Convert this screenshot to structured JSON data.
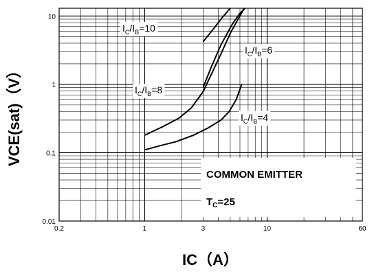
{
  "chart_data": {
    "type": "line",
    "xlabel": "IC（A）",
    "ylabel": "VCE(sat)（V）",
    "x_scale": "log",
    "y_scale": "log",
    "xlim": [
      0.2,
      60
    ],
    "ylim": [
      0.01,
      13
    ],
    "grid": true,
    "x_ticks": [
      {
        "value": 0.2,
        "label": "0.2"
      },
      {
        "value": 1,
        "label": "1"
      },
      {
        "value": 3,
        "label": "3"
      },
      {
        "value": 10,
        "label": "10"
      },
      {
        "value": 60,
        "label": "60"
      }
    ],
    "y_ticks": [
      {
        "value": 0.01,
        "label": "0.01"
      },
      {
        "value": 0.1,
        "label": "0.1"
      },
      {
        "value": 1,
        "label": "1"
      },
      {
        "value": 10,
        "label": "10"
      }
    ],
    "series": [
      {
        "curve_label": {
          "main": "I",
          "sub1": "C",
          "mid": "/I",
          "sub2": "B",
          "tail": "=10"
        },
        "points": [
          [
            3.0,
            4.2
          ],
          [
            3.6,
            6.3
          ],
          [
            4.3,
            9.5
          ],
          [
            5.0,
            13.0
          ]
        ]
      },
      {
        "curve_label": {
          "main": "I",
          "sub1": "C",
          "mid": "/I",
          "sub2": "B",
          "tail": "=6"
        },
        "points": [
          [
            3.0,
            0.9
          ],
          [
            3.5,
            1.8
          ],
          [
            4.2,
            3.8
          ],
          [
            5.2,
            7.6
          ],
          [
            6.0,
            11.0
          ],
          [
            6.6,
            13.0
          ]
        ]
      },
      {
        "curve_label": {
          "main": "I",
          "sub1": "C",
          "mid": "/I",
          "sub2": "B",
          "tail": "=8"
        },
        "points": [
          [
            1.0,
            0.18
          ],
          [
            1.4,
            0.24
          ],
          [
            1.9,
            0.32
          ],
          [
            2.4,
            0.45
          ],
          [
            3.0,
            0.78
          ],
          [
            3.5,
            1.4
          ],
          [
            4.2,
            2.8
          ],
          [
            5.0,
            5.6
          ],
          [
            5.8,
            9.0
          ],
          [
            6.5,
            13.0
          ]
        ]
      },
      {
        "curve_label": {
          "main": "I",
          "sub1": "C",
          "mid": "/I",
          "sub2": "B",
          "tail": "=4"
        },
        "points": [
          [
            1.0,
            0.11
          ],
          [
            1.3,
            0.125
          ],
          [
            1.8,
            0.145
          ],
          [
            2.5,
            0.18
          ],
          [
            3.3,
            0.23
          ],
          [
            4.2,
            0.3
          ],
          [
            4.9,
            0.4
          ],
          [
            5.6,
            0.6
          ],
          [
            6.2,
            1.0
          ]
        ]
      }
    ],
    "annotation_lines": [
      "COMMON EMITTER"
    ],
    "condition": {
      "main": "T",
      "sub": "C",
      "tail": "=25"
    }
  }
}
